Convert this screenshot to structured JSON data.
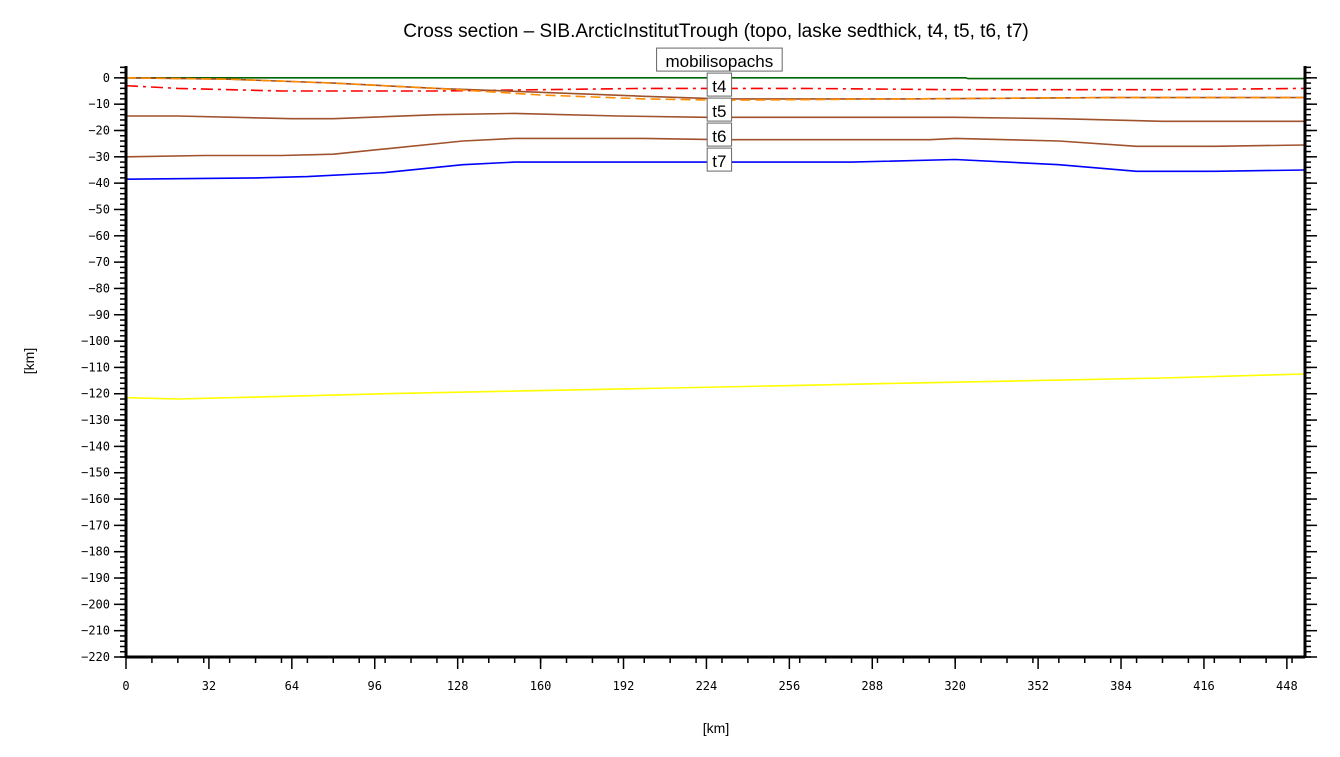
{
  "chart_data": {
    "type": "line",
    "title": "Cross section – SIB.ArcticInstitutTrough (topo, laske sedthick, t4, t5, t6, t7)",
    "xlabel": "[km]",
    "ylabel": "[km]",
    "xlim": [
      0,
      455
    ],
    "ylim": [
      -220,
      4.5
    ],
    "xticks": [
      0,
      32,
      64,
      96,
      128,
      160,
      192,
      224,
      256,
      288,
      320,
      352,
      384,
      416,
      448
    ],
    "yticks": [
      0,
      -10,
      -20,
      -30,
      -40,
      -50,
      -60,
      -70,
      -80,
      -90,
      -100,
      -110,
      -120,
      -130,
      -140,
      -150,
      -160,
      -170,
      -180,
      -190,
      -200,
      -210,
      -220
    ],
    "grid": false,
    "series": [
      {
        "color": "#006400",
        "dash": "solid",
        "x": [
          0,
          324,
          325,
          455
        ],
        "y": [
          0,
          0,
          -0.3,
          -0.3
        ]
      },
      {
        "color": "#ff0000",
        "dash": "dashdot",
        "x": [
          0,
          20,
          60,
          120,
          200,
          260,
          320,
          400,
          455
        ],
        "y": [
          -3,
          -4,
          -5,
          -5,
          -4,
          -4,
          -4.5,
          -4.5,
          -4
        ]
      },
      {
        "name": "t4",
        "color": "#a0522d",
        "dash": "solid",
        "x": [
          0,
          40,
          80,
          120,
          160,
          200,
          230,
          300,
          380,
          455
        ],
        "y": [
          0,
          -0.5,
          -2,
          -4,
          -5.5,
          -7,
          -8,
          -8,
          -7.5,
          -7.5
        ]
      },
      {
        "color": "#ff8c00",
        "dash": "dashed",
        "x": [
          0,
          40,
          80,
          120,
          160,
          200,
          230,
          300,
          380,
          455
        ],
        "y": [
          0,
          -0.5,
          -2,
          -4,
          -6.5,
          -8,
          -8.5,
          -8,
          -7.5,
          -7.5
        ]
      },
      {
        "name": "t5",
        "color": "#a0522d",
        "dash": "solid",
        "x": [
          0,
          20,
          64,
          80,
          120,
          150,
          190,
          224,
          320,
          360,
          400,
          455
        ],
        "y": [
          -14.5,
          -14.5,
          -15.5,
          -15.5,
          -14,
          -13.5,
          -14.5,
          -15,
          -15,
          -15.5,
          -16.5,
          -16.5
        ]
      },
      {
        "name": "t6",
        "color": "#a0522d",
        "dash": "solid",
        "x": [
          0,
          30,
          60,
          80,
          100,
          130,
          150,
          200,
          230,
          310,
          320,
          360,
          390,
          420,
          455
        ],
        "y": [
          -30,
          -29.5,
          -29.5,
          -29,
          -27,
          -24,
          -23,
          -23,
          -23.5,
          -23.5,
          -23,
          -24,
          -26,
          -26,
          -25.5
        ]
      },
      {
        "name": "t7",
        "color": "#0000ff",
        "dash": "solid",
        "x": [
          0,
          50,
          70,
          100,
          130,
          150,
          280,
          320,
          360,
          390,
          420,
          455
        ],
        "y": [
          -38.5,
          -38,
          -37.5,
          -36,
          -33,
          -32,
          -32,
          -31,
          -33,
          -35.5,
          -35.5,
          -35
        ]
      },
      {
        "color": "#ffff00",
        "dash": "solid",
        "x": [
          0,
          20,
          60,
          100,
          150,
          200,
          250,
          300,
          350,
          400,
          455
        ],
        "y": [
          -121.5,
          -122,
          -121,
          -120,
          -119,
          -118,
          -117,
          -116,
          -115,
          -114,
          -112.5
        ]
      }
    ],
    "annotations": [
      {
        "text": "mobilisopachs",
        "x": 229,
        "y": -4
      },
      {
        "text": "t4",
        "x": 229,
        "y": -8
      },
      {
        "text": "t5",
        "x": 229,
        "y": -15
      },
      {
        "text": "t6",
        "x": 229,
        "y": -23.5
      },
      {
        "text": "t7",
        "x": 229,
        "y": -32
      }
    ]
  }
}
